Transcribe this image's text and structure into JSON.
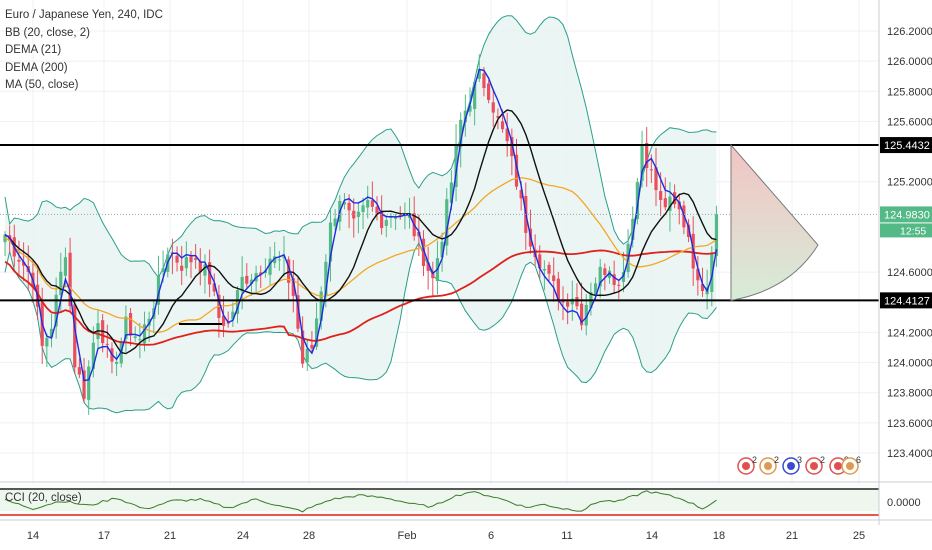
{
  "chart_title": "Euro / Japanese Yen, 240, IDC",
  "indicators": [
    "BB (20, close, 2)",
    "DEMA (21)",
    "DEMA (200)",
    "MA (50, close)"
  ],
  "cci_label": "CCI (20, close)",
  "colors": {
    "up": "#53b987",
    "down": "#eb4d5c",
    "bb": "#2b9e8a",
    "bb_fill": "#e6f4f1",
    "dema21": "#1f2be0",
    "dema200": "#111111",
    "ma50": "#f5a623",
    "red_ma": "#e0201b",
    "cci": "#3b7a2a",
    "cci_zero": "#e0201b",
    "level": "#000000"
  },
  "price_axis": {
    "ticks": [
      "126.2000",
      "126.0000",
      "125.8000",
      "125.6000",
      "125.2000",
      "124.6000",
      "124.2000",
      "124.0000",
      "123.8000",
      "123.6000",
      "123.4000"
    ],
    "tick_values": [
      126.2,
      126.0,
      125.8,
      125.6,
      125.2,
      124.6,
      124.2,
      124.0,
      123.8,
      123.6,
      123.4
    ],
    "labels": {
      "resistance": "125.4432",
      "support": "124.4127",
      "last": "124.9830",
      "countdown": "12:55"
    },
    "ylim": [
      123.28,
      126.35
    ]
  },
  "cci_axis": {
    "tick": "0.0000"
  },
  "time_axis": {
    "labels": [
      "14",
      "17",
      "21",
      "24",
      "28",
      "Feb",
      "6",
      "11",
      "14",
      "18",
      "21",
      "25"
    ]
  },
  "chart_data": {
    "type": "candlestick",
    "symbol": "EURJPY",
    "timeframe": "240",
    "levels": {
      "resistance": 125.4432,
      "support": 124.4127
    },
    "last_price": 124.983,
    "ylim": [
      123.28,
      126.35
    ],
    "x_labels": [
      "14",
      "17",
      "21",
      "24",
      "28",
      "Feb",
      "6",
      "11",
      "14",
      "18",
      "21",
      "25"
    ],
    "anchors": [
      [
        0,
        124.85
      ],
      [
        3,
        124.7
      ],
      [
        6,
        124.55
      ],
      [
        8,
        124.1
      ],
      [
        10,
        124.25
      ],
      [
        13,
        124.75
      ],
      [
        15,
        124.0
      ],
      [
        17,
        123.8
      ],
      [
        20,
        124.3
      ],
      [
        23,
        123.95
      ],
      [
        26,
        124.25
      ],
      [
        29,
        124.15
      ],
      [
        32,
        124.4
      ],
      [
        35,
        124.75
      ],
      [
        38,
        124.65
      ],
      [
        41,
        124.7
      ],
      [
        44,
        124.55
      ],
      [
        46,
        124.3
      ],
      [
        48,
        124.25
      ],
      [
        51,
        124.55
      ],
      [
        54,
        124.6
      ],
      [
        57,
        124.7
      ],
      [
        60,
        124.65
      ],
      [
        62,
        124.45
      ],
      [
        64,
        124.0
      ],
      [
        66,
        124.1
      ],
      [
        68,
        124.5
      ],
      [
        70,
        124.9
      ],
      [
        72,
        125.1
      ],
      [
        75,
        124.9
      ],
      [
        78,
        125.05
      ],
      [
        81,
        124.95
      ],
      [
        84,
        125.0
      ],
      [
        87,
        124.95
      ],
      [
        90,
        124.7
      ],
      [
        92,
        124.55
      ],
      [
        94,
        124.85
      ],
      [
        96,
        125.2
      ],
      [
        98,
        125.6
      ],
      [
        100,
        125.75
      ],
      [
        102,
        125.9
      ],
      [
        104,
        125.8
      ],
      [
        106,
        125.6
      ],
      [
        108,
        125.45
      ],
      [
        110,
        125.2
      ],
      [
        112,
        124.9
      ],
      [
        114,
        124.75
      ],
      [
        117,
        124.55
      ],
      [
        120,
        124.4
      ],
      [
        122,
        124.45
      ],
      [
        124,
        124.3
      ],
      [
        126,
        124.5
      ],
      [
        128,
        124.6
      ],
      [
        130,
        124.65
      ],
      [
        132,
        124.5
      ],
      [
        134,
        124.8
      ],
      [
        136,
        125.2
      ],
      [
        137,
        125.45
      ],
      [
        139,
        125.25
      ],
      [
        141,
        125.05
      ],
      [
        143,
        125.05
      ],
      [
        145,
        125.0
      ],
      [
        147,
        124.85
      ],
      [
        149,
        124.5
      ],
      [
        151,
        124.55
      ],
      [
        153,
        124.983
      ]
    ],
    "cci": [
      [
        0,
        0.15
      ],
      [
        6,
        -0.55
      ],
      [
        12,
        0.1
      ],
      [
        18,
        -0.3
      ],
      [
        24,
        0.35
      ],
      [
        30,
        -0.6
      ],
      [
        36,
        0.1
      ],
      [
        42,
        0.2
      ],
      [
        48,
        -0.5
      ],
      [
        54,
        0.25
      ],
      [
        60,
        -0.45
      ],
      [
        64,
        -0.75
      ],
      [
        70,
        0.2
      ],
      [
        76,
        0.55
      ],
      [
        82,
        0.35
      ],
      [
        88,
        -0.2
      ],
      [
        92,
        -0.4
      ],
      [
        96,
        0.4
      ],
      [
        100,
        0.85
      ],
      [
        104,
        0.55
      ],
      [
        108,
        0.1
      ],
      [
        112,
        -0.45
      ],
      [
        116,
        -0.2
      ],
      [
        120,
        -0.55
      ],
      [
        124,
        -0.7
      ],
      [
        128,
        0.1
      ],
      [
        132,
        0.05
      ],
      [
        136,
        0.6
      ],
      [
        138,
        0.9
      ],
      [
        142,
        0.6
      ],
      [
        146,
        0.2
      ],
      [
        150,
        -0.55
      ],
      [
        153,
        0.15
      ]
    ]
  }
}
